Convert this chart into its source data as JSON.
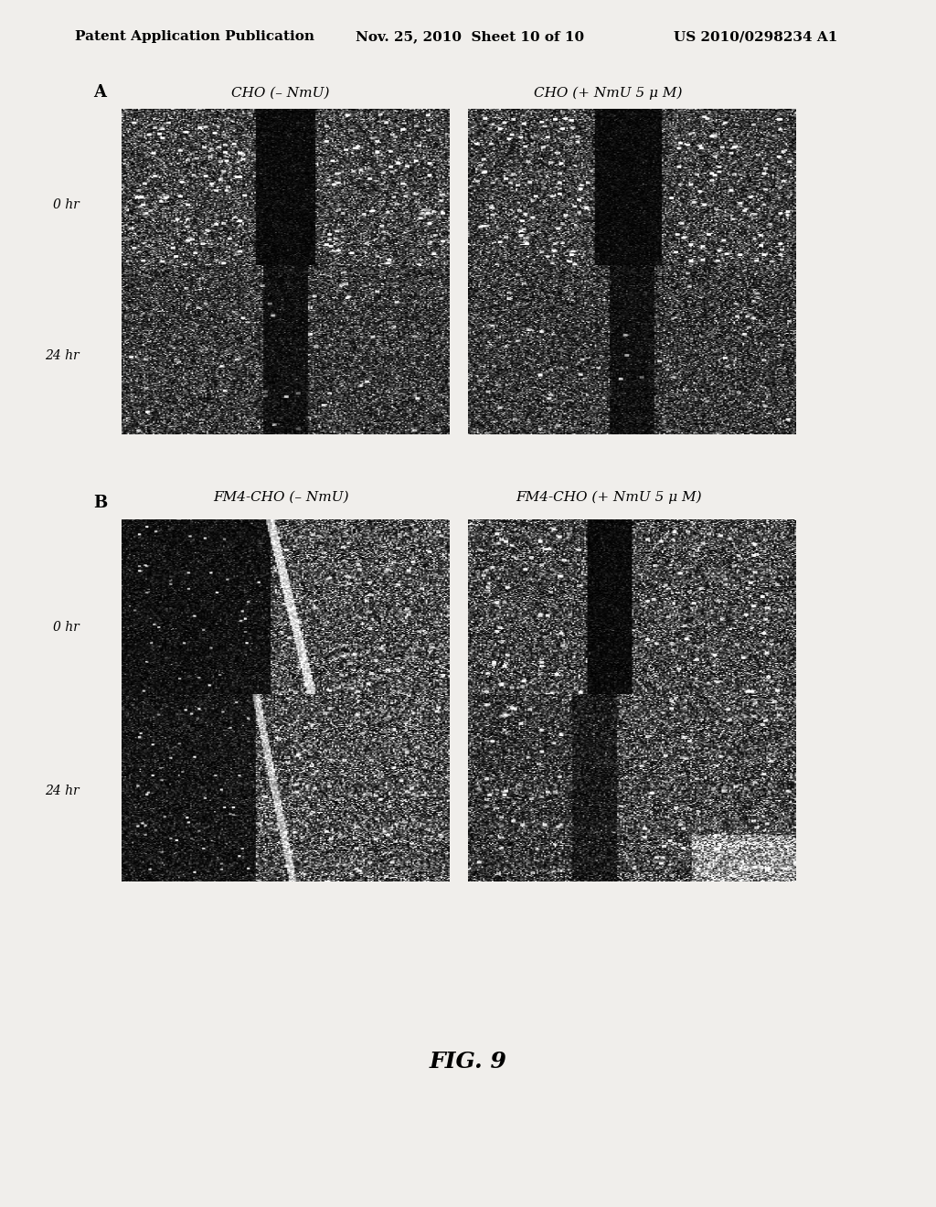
{
  "page_header_left": "Patent Application Publication",
  "page_header_mid": "Nov. 25, 2010  Sheet 10 of 10",
  "page_header_right": "US 2010/0298234 A1",
  "figure_label": "FIG. 9",
  "section_A_label": "A",
  "section_B_label": "B",
  "col_labels_A": [
    "CHO (– NmU)",
    "CHO (+ NmU 5 μ M)"
  ],
  "col_labels_B": [
    "FM4-CHO (– NmU)",
    "FM4-CHO (+ NmU 5 μ M)"
  ],
  "row_labels": [
    "0 hr",
    "24 hr"
  ],
  "background_color": "#f0eeeb",
  "panel_bg": "#c8c8c8",
  "header_fontsize": 11,
  "label_fontsize": 13,
  "col_label_fontsize": 11,
  "row_label_fontsize": 10,
  "fig_label_fontsize": 18
}
